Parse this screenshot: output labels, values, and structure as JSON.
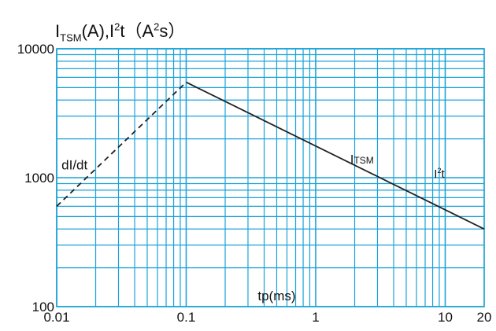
{
  "chart_data": {
    "type": "line",
    "title": {
      "main": "I",
      "sub": "TSM",
      "mid": "(A),I",
      "sup": "2",
      "end": "t（A",
      "sup2": "2",
      "end2": "s）"
    },
    "xlabel": "tp(ms)",
    "ylabel": "",
    "x_scale": "log",
    "y_scale": "log",
    "xlim": [
      0.01,
      20
    ],
    "ylim": [
      100,
      10000
    ],
    "x_ticks": [
      {
        "value": 0.01,
        "label": "0.01"
      },
      {
        "value": 0.1,
        "label": "0.1"
      },
      {
        "value": 1,
        "label": "1"
      },
      {
        "value": 10,
        "label": "10"
      },
      {
        "value": 20,
        "label": "20"
      }
    ],
    "y_ticks": [
      {
        "value": 100,
        "label": "100"
      },
      {
        "value": 1000,
        "label": "1000"
      },
      {
        "value": 10000,
        "label": "10000"
      }
    ],
    "grid": true,
    "grid_color": "#1aa3d9",
    "series": [
      {
        "name": "dI/dt",
        "label": "dI/dt",
        "style": "dashed",
        "color": "#222222",
        "points": [
          [
            0.01,
            600
          ],
          [
            0.1,
            5500
          ]
        ]
      },
      {
        "name": "ITSM",
        "label_main": "I",
        "label_sub": "TSM",
        "style": "solid",
        "color": "#222222",
        "points": [
          [
            0.1,
            5500
          ],
          [
            20,
            400
          ]
        ]
      }
    ],
    "annotations": [
      {
        "name": "i2t",
        "main": "I",
        "sup": "2",
        "end": "t"
      }
    ]
  }
}
